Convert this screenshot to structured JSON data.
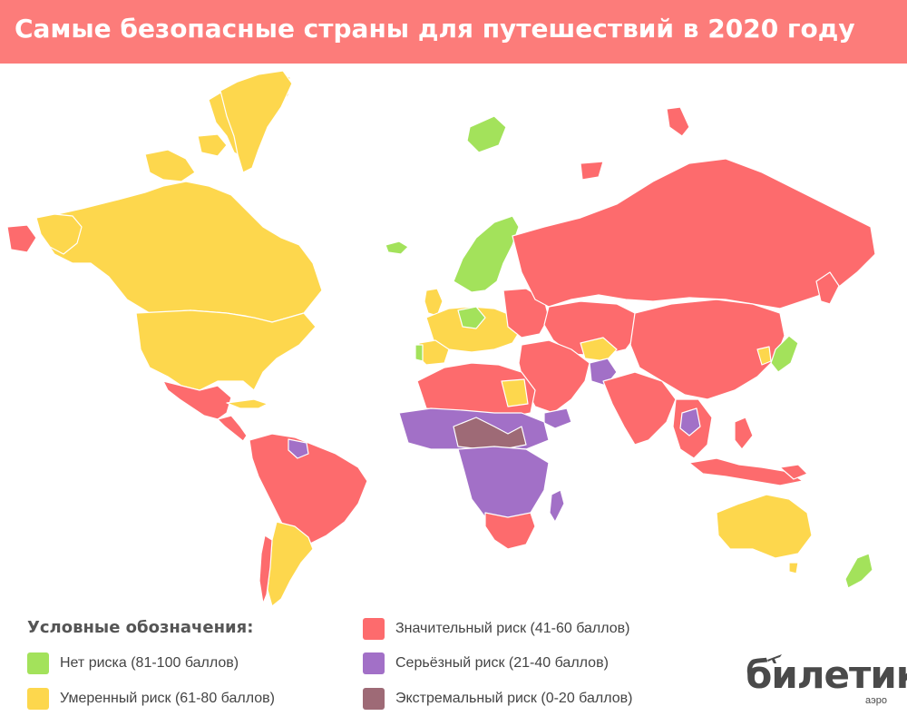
{
  "title": "Самые безопасные страны для путешествий в 2020 году",
  "colors": {
    "header": "#fc7c7a",
    "no_risk": "#a3e25b",
    "moderate": "#fdd74d",
    "significant": "#fd6b6d",
    "serious": "#a270c7",
    "extreme": "#9e6a76"
  },
  "legend": {
    "title": "Условные обозначения:",
    "items": [
      {
        "label": "Нет риска (81-100 баллов)",
        "color": "#a3e25b"
      },
      {
        "label": "Умеренный риск (61-80 баллов)",
        "color": "#fdd74d"
      },
      {
        "label": "Значительный риск (41-60 баллов)",
        "color": "#fd6b6d"
      },
      {
        "label": "Серьёзный риск (21-40 баллов)",
        "color": "#a270c7"
      },
      {
        "label": "Экстремальный риск (0-20 баллов)",
        "color": "#9e6a76"
      }
    ]
  },
  "logo": {
    "name": "билетик",
    "sub": "аэро"
  }
}
